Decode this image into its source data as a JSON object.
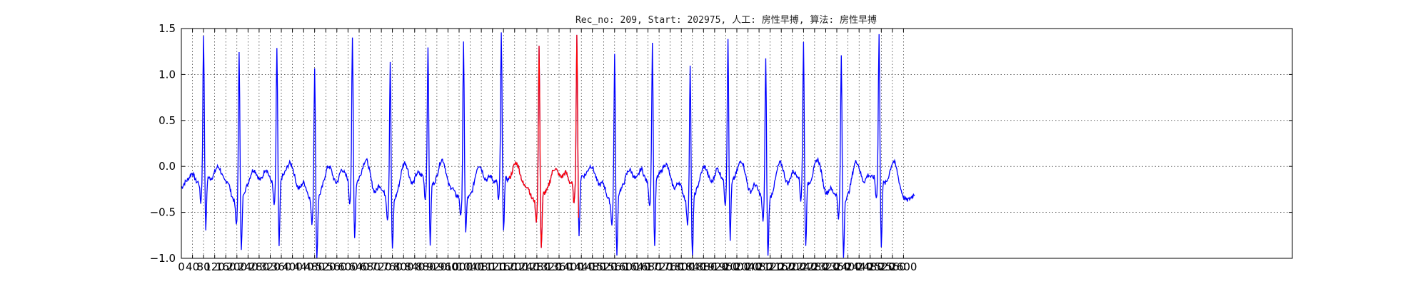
{
  "chart_data": {
    "type": "line",
    "title": "Rec_no: 209, Start: 202975, 人工: 房性早搏, 算法: 房性早搏",
    "xlabel": "",
    "ylabel": "",
    "xlim": [
      0,
      4000
    ],
    "ylim": [
      -1.0,
      1.5
    ],
    "grid": true,
    "x_ticks": [
      0,
      40,
      80,
      120,
      160,
      200,
      240,
      280,
      320,
      360,
      400,
      440,
      480,
      520,
      560,
      600,
      640,
      680,
      720,
      760,
      800,
      840,
      880,
      920,
      960,
      1000,
      1040,
      1080,
      1120,
      1160,
      1200,
      1240,
      1280,
      1320,
      1360,
      1400,
      1440,
      1480,
      1520,
      1560,
      1600,
      1640,
      1680,
      1720,
      1760,
      1800,
      1840,
      1880,
      1920,
      1960,
      2000,
      2040,
      2080,
      2120,
      2160,
      2200,
      2240,
      2280,
      2320,
      2360,
      2400,
      2440,
      2480,
      2520,
      2560,
      2600
    ],
    "x_tick_labels": [
      "0",
      "40",
      "80",
      "120",
      "160",
      "200",
      "240",
      "280",
      "320",
      "360",
      "400",
      "440",
      "480",
      "520",
      "560",
      "600",
      "640",
      "680",
      "720",
      "760",
      "800",
      "840",
      "880",
      "920",
      "960",
      "1000",
      "1040",
      "1080",
      "1120",
      "1160",
      "1200",
      "1240",
      "1280",
      "1320",
      "1360",
      "1400",
      "1440",
      "1480",
      "1520",
      "1560",
      "1600",
      "1640",
      "1680",
      "1720",
      "1760",
      "1800",
      "1840",
      "1880",
      "1920",
      "1960",
      "2000",
      "2040",
      "2080",
      "2120",
      "2160",
      "2200",
      "2240",
      "2280",
      "2320",
      "2360",
      "2400",
      "2440",
      "2480",
      "2520",
      "2560",
      "2600"
    ],
    "y_ticks": [
      -1.0,
      -0.5,
      0.0,
      0.5,
      1.0,
      1.5
    ],
    "y_tick_labels": [
      "−1.0",
      "−0.5",
      "0.0",
      "0.5",
      "1.0",
      "1.5"
    ],
    "r_peaks": [
      {
        "x": 80,
        "r": 1.3,
        "s": -0.78
      },
      {
        "x": 208,
        "r": 1.38,
        "s": -0.8
      },
      {
        "x": 344,
        "r": 1.22,
        "s": -0.92
      },
      {
        "x": 480,
        "r": 1.22,
        "s": -0.87
      },
      {
        "x": 616,
        "r": 1.32,
        "s": -0.8
      },
      {
        "x": 752,
        "r": 1.26,
        "s": -0.75
      },
      {
        "x": 888,
        "r": 1.22,
        "s": -0.88
      },
      {
        "x": 1016,
        "r": 1.4,
        "s": -0.6
      },
      {
        "x": 1152,
        "r": 1.32,
        "s": -0.82
      },
      {
        "x": 1288,
        "r": 1.38,
        "s": -0.8
      },
      {
        "x": 1424,
        "r": 1.3,
        "s": -0.88
      },
      {
        "x": 1560,
        "r": 1.32,
        "s": -0.88
      },
      {
        "x": 1696,
        "r": 1.25,
        "s": -0.95
      },
      {
        "x": 1832,
        "r": 1.24,
        "s": -0.85
      },
      {
        "x": 1968,
        "r": 1.34,
        "s": -0.82
      },
      {
        "x": 2104,
        "r": 1.32,
        "s": -0.82
      },
      {
        "x": 2240,
        "r": 1.26,
        "s": -0.9
      },
      {
        "x": 2376,
        "r": 1.3,
        "s": -0.85
      },
      {
        "x": 2512,
        "r": 1.32,
        "s": -0.92
      }
    ],
    "series": [
      {
        "color": "#0000ff",
        "x_range": [
          0,
          2640
        ]
      },
      {
        "color": "#ff0000",
        "x_range": [
          1180,
          1430
        ]
      }
    ]
  }
}
